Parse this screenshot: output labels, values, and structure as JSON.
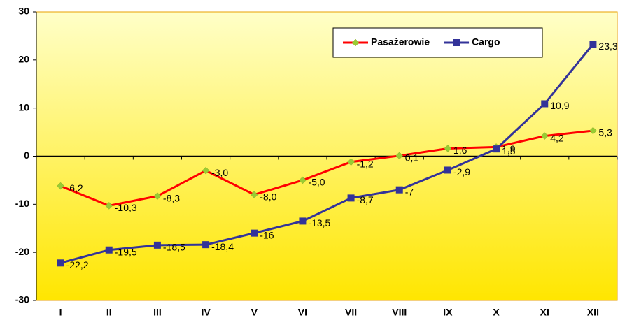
{
  "chart_data": {
    "type": "line",
    "categories": [
      "I",
      "II",
      "III",
      "IV",
      "V",
      "VI",
      "VII",
      "VIII",
      "IX",
      "X",
      "XI",
      "XII"
    ],
    "series": [
      {
        "name": "Pasażerowie",
        "color": "#ff0000",
        "marker_color": "#99cc33",
        "marker": "diamond",
        "values": [
          -6.2,
          -10.3,
          -8.3,
          -3.0,
          -8.0,
          -5.0,
          -1.2,
          0.1,
          1.6,
          1.9,
          4.2,
          5.3
        ],
        "value_labels": [
          "-6,2",
          "-10,3",
          "-8,3",
          "-3,0",
          "-8,0",
          "-5,0",
          "-1,2",
          "0,1",
          "1,6",
          "1,9",
          "4,2",
          "5,3"
        ]
      },
      {
        "name": "Cargo",
        "color": "#333399",
        "marker_color": "#333399",
        "marker": "square",
        "values": [
          -22.2,
          -19.5,
          -18.5,
          -18.4,
          -16,
          -13.5,
          -8.7,
          -7,
          -2.9,
          1.5,
          10.9,
          23.3
        ],
        "value_labels": [
          "-22,2",
          "-19,5",
          "-18,5",
          "-18,4",
          "-16",
          "-13,5",
          "-8,7",
          "-7",
          "-2,9",
          "1,5",
          "10,9",
          "23,3"
        ]
      }
    ],
    "ylim": [
      -30,
      30
    ],
    "yticks": [
      -30,
      -20,
      -10,
      0,
      10,
      20,
      30
    ],
    "legend": "top-right"
  }
}
